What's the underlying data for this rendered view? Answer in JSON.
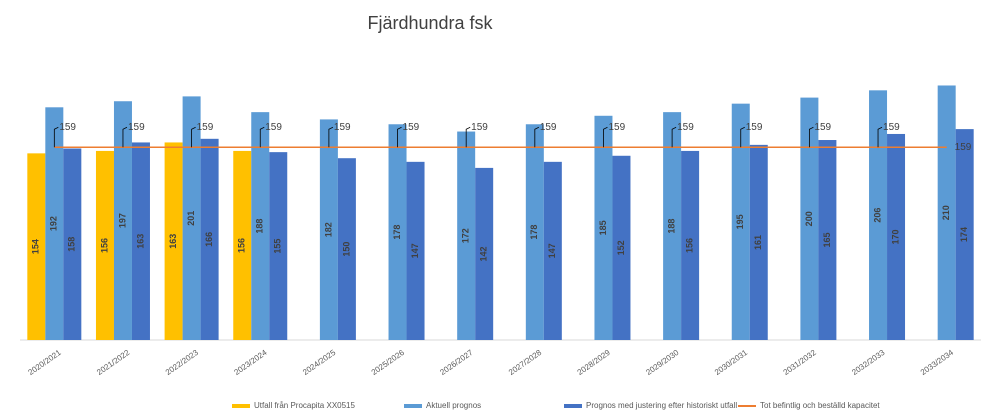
{
  "chart_data": {
    "type": "bar",
    "title": "Fjärdhundra fsk",
    "categories": [
      "2020/2021",
      "2021/2022",
      "2022/2023",
      "2023/2024",
      "2024/2025",
      "2025/2026",
      "2026/2027",
      "2027/2028",
      "2028/2029",
      "2029/2030",
      "2030/2031",
      "2031/2032",
      "2032/2033",
      "2033/2034"
    ],
    "series": [
      {
        "name": "Utfall från Procapita XX0515",
        "color": "#FFC000",
        "values": [
          154,
          156,
          163,
          156,
          null,
          null,
          null,
          null,
          null,
          null,
          null,
          null,
          null,
          null
        ]
      },
      {
        "name": "Aktuell prognos",
        "color": "#5B9BD5",
        "values": [
          192,
          197,
          201,
          188,
          182,
          178,
          172,
          178,
          185,
          188,
          195,
          200,
          206,
          210
        ]
      },
      {
        "name": "Prognos med justering efter historiskt utfall",
        "color": "#4472C4",
        "values": [
          158,
          163,
          166,
          155,
          150,
          147,
          142,
          147,
          152,
          156,
          161,
          165,
          170,
          174
        ]
      },
      {
        "name": "Tot befintlig och beställd kapacitet",
        "color": "#ED7D31",
        "type": "line",
        "values": [
          159,
          159,
          159,
          159,
          159,
          159,
          159,
          159,
          159,
          159,
          159,
          159,
          159,
          159
        ]
      }
    ],
    "ylim": [
      0,
      250
    ]
  }
}
